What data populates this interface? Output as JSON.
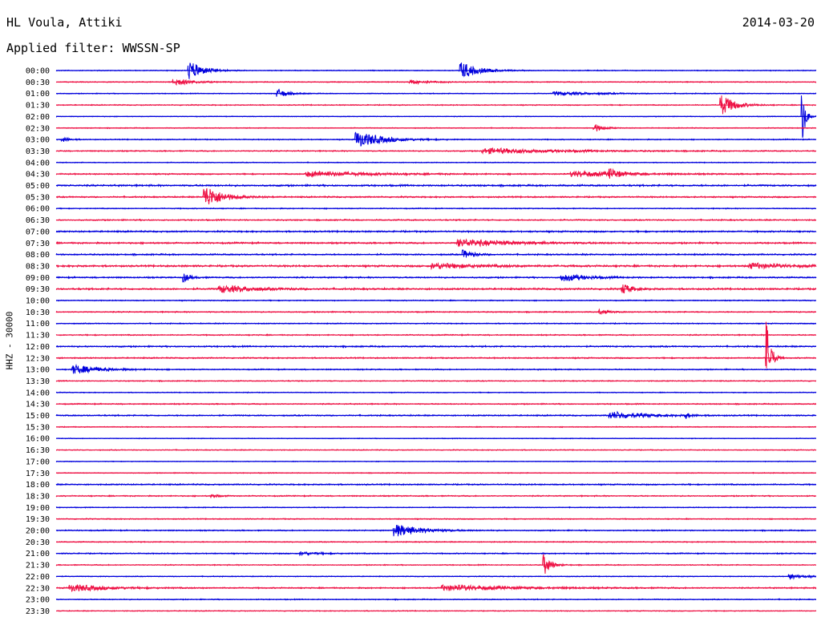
{
  "header": {
    "station": "HL Voula, Attiki",
    "date": "2014-03-20",
    "filter": "Applied filter: WWSSN-SP"
  },
  "chart_data": {
    "type": "line",
    "title": "HL Voula, Attiki",
    "date": "2014-03-20",
    "filter": "WWSSN-SP",
    "ylabel": "HHZ - 30000",
    "row_colors": [
      "#0000dd",
      "#ee1144"
    ],
    "trace_labels": [
      "00:00",
      "00:30",
      "01:00",
      "01:30",
      "02:00",
      "02:30",
      "03:00",
      "03:30",
      "04:00",
      "04:30",
      "05:00",
      "05:30",
      "06:00",
      "06:30",
      "07:00",
      "07:30",
      "08:00",
      "08:30",
      "09:00",
      "09:30",
      "10:00",
      "10:30",
      "11:00",
      "11:30",
      "12:00",
      "12:30",
      "13:00",
      "13:30",
      "14:00",
      "14:30",
      "15:00",
      "15:30",
      "16:00",
      "16:30",
      "17:00",
      "17:30",
      "18:00",
      "18:30",
      "19:00",
      "19:30",
      "20:00",
      "20:30",
      "21:00",
      "21:30",
      "22:00",
      "22:30",
      "23:00",
      "23:30"
    ],
    "noise_levels": [
      0.6,
      0.7,
      0.6,
      0.7,
      0.5,
      0.6,
      0.7,
      0.8,
      0.6,
      0.9,
      1.2,
      1.0,
      0.7,
      0.9,
      1.1,
      1.1,
      1.0,
      1.3,
      1.0,
      1.2,
      0.7,
      0.8,
      0.7,
      0.8,
      1.0,
      0.9,
      0.8,
      0.7,
      0.6,
      0.8,
      0.9,
      0.6,
      0.5,
      0.6,
      0.5,
      0.6,
      0.9,
      0.8,
      0.6,
      0.7,
      0.8,
      0.7,
      0.8,
      0.7,
      0.6,
      0.9,
      0.7,
      0.6
    ],
    "events": [
      {
        "trace": "00:00",
        "minute": 5.2,
        "amplitude": 11,
        "duration_min": 0.8
      },
      {
        "trace": "00:00",
        "minute": 15.9,
        "amplitude": 10,
        "duration_min": 1.0
      },
      {
        "trace": "00:30",
        "minute": 4.6,
        "amplitude": 4,
        "duration_min": 1.0
      },
      {
        "trace": "00:30",
        "minute": 13.9,
        "amplitude": 2,
        "duration_min": 1.2
      },
      {
        "trace": "01:00",
        "minute": 8.7,
        "amplitude": 5,
        "duration_min": 0.6
      },
      {
        "trace": "01:00",
        "minute": 19.6,
        "amplitude": 2,
        "duration_min": 2.5
      },
      {
        "trace": "01:30",
        "minute": 26.2,
        "amplitude": 12,
        "duration_min": 0.8
      },
      {
        "trace": "02:00",
        "minute": 29.4,
        "amplitude": 40,
        "duration_min": 0.2
      },
      {
        "trace": "02:30",
        "minute": 21.2,
        "amplitude": 5,
        "duration_min": 0.5
      },
      {
        "trace": "03:00",
        "minute": 11.8,
        "amplitude": 9,
        "duration_min": 1.5
      },
      {
        "trace": "03:00",
        "minute": 0.2,
        "amplitude": 3,
        "duration_min": 0.4
      },
      {
        "trace": "03:30",
        "minute": 16.8,
        "amplitude": 3,
        "duration_min": 4.0
      },
      {
        "trace": "04:30",
        "minute": 9.8,
        "amplitude": 3,
        "duration_min": 3.5
      },
      {
        "trace": "04:30",
        "minute": 20.3,
        "amplitude": 3,
        "duration_min": 3.0
      },
      {
        "trace": "04:30",
        "minute": 21.8,
        "amplitude": 5,
        "duration_min": 0.6
      },
      {
        "trace": "05:30",
        "minute": 5.8,
        "amplitude": 13,
        "duration_min": 1.0
      },
      {
        "trace": "07:30",
        "minute": 15.8,
        "amplitude": 4,
        "duration_min": 3.0
      },
      {
        "trace": "08:00",
        "minute": 16.0,
        "amplitude": 5,
        "duration_min": 0.6
      },
      {
        "trace": "08:30",
        "minute": 14.8,
        "amplitude": 3,
        "duration_min": 2.5
      },
      {
        "trace": "08:30",
        "minute": 27.3,
        "amplitude": 3,
        "duration_min": 2.0
      },
      {
        "trace": "09:00",
        "minute": 5.0,
        "amplitude": 5,
        "duration_min": 0.4
      },
      {
        "trace": "09:00",
        "minute": 19.9,
        "amplitude": 4,
        "duration_min": 1.5
      },
      {
        "trace": "09:30",
        "minute": 6.4,
        "amplitude": 4,
        "duration_min": 2.0
      },
      {
        "trace": "09:30",
        "minute": 22.3,
        "amplitude": 6,
        "duration_min": 0.6
      },
      {
        "trace": "10:30",
        "minute": 21.4,
        "amplitude": 3,
        "duration_min": 0.5
      },
      {
        "trace": "12:30",
        "minute": 28.0,
        "amplitude": 50,
        "duration_min": 0.25
      },
      {
        "trace": "13:00",
        "minute": 0.6,
        "amplitude": 5,
        "duration_min": 1.5
      },
      {
        "trace": "15:00",
        "minute": 21.8,
        "amplitude": 4,
        "duration_min": 2.0
      },
      {
        "trace": "15:00",
        "minute": 24.8,
        "amplitude": 3,
        "duration_min": 0.3
      },
      {
        "trace": "18:30",
        "minute": 6.1,
        "amplitude": 2,
        "duration_min": 0.5
      },
      {
        "trace": "20:00",
        "minute": 13.3,
        "amplitude": 7,
        "duration_min": 1.5
      },
      {
        "trace": "21:00",
        "minute": 9.6,
        "amplitude": 2,
        "duration_min": 1.0
      },
      {
        "trace": "21:30",
        "minute": 19.2,
        "amplitude": 13,
        "duration_min": 0.4
      },
      {
        "trace": "22:00",
        "minute": 28.9,
        "amplitude": 3,
        "duration_min": 0.8
      },
      {
        "trace": "22:30",
        "minute": 0.5,
        "amplitude": 4,
        "duration_min": 2.0
      },
      {
        "trace": "22:30",
        "minute": 15.2,
        "amplitude": 3,
        "duration_min": 4.0
      }
    ]
  }
}
